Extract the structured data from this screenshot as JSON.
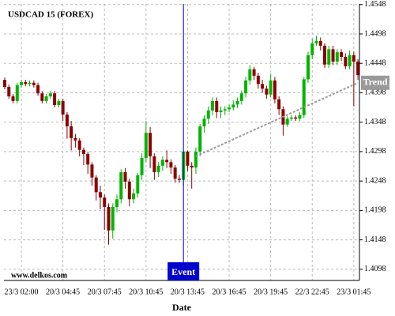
{
  "chart_data": {
    "type": "candlestick",
    "title": "USDCAD 15 (FOREX)",
    "watermark": "www.delkos.com",
    "x_label": "Date",
    "categories": [
      null,
      null,
      null,
      null,
      "23/3 02:00",
      null,
      null,
      null,
      null,
      null,
      null,
      null,
      null,
      null,
      "20/3 04:45",
      null,
      null,
      null,
      null,
      null,
      null,
      null,
      null,
      null,
      "20/3 07:45",
      null,
      null,
      null,
      null,
      null,
      null,
      null,
      null,
      null,
      "20/3 10:45",
      null,
      null,
      null,
      null,
      null,
      null,
      null,
      null,
      null,
      "20/3 13:45",
      null,
      null,
      null,
      null,
      null,
      null,
      null,
      null,
      null,
      "20/3 16:45",
      null,
      null,
      null,
      null,
      null,
      null,
      null,
      null,
      null,
      "20/3 19:45",
      null,
      null,
      null,
      null,
      null,
      null,
      null,
      null,
      null,
      "22/3 22:45",
      null,
      null,
      null,
      null,
      null,
      null,
      null,
      null,
      null,
      "23/3 01:45",
      null
    ],
    "open": [
      1.442,
      1.4408,
      1.4392,
      1.4384,
      1.4411,
      1.4416,
      1.4413,
      1.4415,
      1.4411,
      1.4397,
      1.4384,
      1.4392,
      1.4397,
      1.4377,
      1.4384,
      1.4361,
      1.4341,
      1.4321,
      1.4317,
      1.4301,
      1.4294,
      1.4276,
      1.4254,
      1.4229,
      1.422,
      1.4204,
      1.4164,
      1.4204,
      1.4217,
      1.4263,
      1.4247,
      1.4217,
      1.4227,
      1.4258,
      1.4287,
      1.433,
      1.429,
      1.4263,
      1.4274,
      1.4284,
      1.428,
      1.4271,
      1.4252,
      1.425,
      1.4298,
      1.4274,
      1.4271,
      1.4298,
      1.4341,
      1.4354,
      1.4368,
      1.4384,
      1.4365,
      1.4368,
      1.437,
      1.4373,
      1.4378,
      1.4384,
      1.4397,
      1.4419,
      1.4438,
      1.4427,
      1.4413,
      1.4405,
      1.4395,
      1.4419,
      1.4387,
      1.437,
      1.4344,
      1.4354,
      1.4356,
      1.4354,
      1.436,
      1.4421,
      1.4462,
      1.4482,
      1.4486,
      1.4478,
      1.4446,
      1.4472,
      1.4451,
      1.4467,
      1.4459,
      1.4443,
      1.4462,
      1.4451
    ],
    "high": [
      1.4424,
      1.4412,
      1.4396,
      1.4415,
      1.442,
      1.442,
      1.4419,
      1.4419,
      1.4415,
      1.4401,
      1.4396,
      1.4401,
      1.4401,
      1.4388,
      1.4388,
      1.4365,
      1.435,
      1.4328,
      1.4321,
      1.4305,
      1.4298,
      1.428,
      1.4258,
      1.424,
      1.4225,
      1.421,
      1.421,
      1.4225,
      1.4268,
      1.427,
      1.4252,
      1.4235,
      1.4262,
      1.4295,
      1.435,
      1.434,
      1.4295,
      1.428,
      1.429,
      1.43,
      1.4285,
      1.4275,
      1.4258,
      1.43,
      1.43,
      1.428,
      1.4305,
      1.4345,
      1.436,
      1.4375,
      1.439,
      1.439,
      1.4375,
      1.4375,
      1.4378,
      1.4385,
      1.439,
      1.4402,
      1.4425,
      1.4445,
      1.4442,
      1.4432,
      1.442,
      1.441,
      1.443,
      1.4425,
      1.4392,
      1.4375,
      1.4358,
      1.436,
      1.436,
      1.4365,
      1.4425,
      1.4468,
      1.449,
      1.4495,
      1.4492,
      1.4482,
      1.4478,
      1.4478,
      1.4472,
      1.4472,
      1.4465,
      1.447,
      1.4468,
      1.4455
    ],
    "low": [
      1.4404,
      1.4388,
      1.438,
      1.438,
      1.4407,
      1.4409,
      1.4409,
      1.4407,
      1.4393,
      1.438,
      1.438,
      1.4388,
      1.4373,
      1.4373,
      1.435,
      1.432,
      1.43,
      1.4305,
      1.429,
      1.4275,
      1.426,
      1.424,
      1.4215,
      1.42,
      1.4165,
      1.414,
      1.415,
      1.4195,
      1.421,
      1.4235,
      1.4205,
      1.421,
      1.422,
      1.425,
      1.428,
      1.427,
      1.425,
      1.4255,
      1.4265,
      1.427,
      1.426,
      1.4245,
      1.4245,
      1.424,
      1.4265,
      1.4235,
      1.426,
      1.429,
      1.433,
      1.4345,
      1.436,
      1.4355,
      1.4355,
      1.436,
      1.4365,
      1.4368,
      1.4372,
      1.4378,
      1.439,
      1.4412,
      1.442,
      1.4405,
      1.4398,
      1.4388,
      1.439,
      1.438,
      1.436,
      1.4325,
      1.434,
      1.435,
      1.435,
      1.435,
      1.4355,
      1.4415,
      1.4455,
      1.4478,
      1.447,
      1.444,
      1.444,
      1.4445,
      1.4445,
      1.4452,
      1.4438,
      1.4438,
      1.4375,
      1.442
    ],
    "close": [
      1.4408,
      1.4392,
      1.4384,
      1.4411,
      1.4416,
      1.4413,
      1.4415,
      1.4411,
      1.4397,
      1.4384,
      1.4392,
      1.4397,
      1.4377,
      1.4384,
      1.4361,
      1.4341,
      1.4321,
      1.4317,
      1.4301,
      1.4294,
      1.4276,
      1.4254,
      1.4229,
      1.422,
      1.4204,
      1.4164,
      1.4204,
      1.4217,
      1.4263,
      1.4247,
      1.4217,
      1.4227,
      1.4258,
      1.4287,
      1.433,
      1.429,
      1.4263,
      1.4274,
      1.4284,
      1.428,
      1.4271,
      1.4252,
      1.425,
      1.4298,
      1.4274,
      1.4271,
      1.4298,
      1.4341,
      1.4354,
      1.4368,
      1.4384,
      1.4365,
      1.4368,
      1.437,
      1.4373,
      1.4378,
      1.4384,
      1.4397,
      1.4419,
      1.4438,
      1.4427,
      1.4413,
      1.4405,
      1.4395,
      1.4419,
      1.4387,
      1.437,
      1.4344,
      1.4354,
      1.4356,
      1.4354,
      1.436,
      1.4421,
      1.4462,
      1.4482,
      1.4486,
      1.4478,
      1.4446,
      1.4472,
      1.4451,
      1.4467,
      1.4459,
      1.4443,
      1.4462,
      1.4451,
      1.4428
    ],
    "up_color": "#00b400",
    "down_color": "#8b0000",
    "ylim": [
      1.4079,
      1.4549
    ],
    "yticks": [
      1.4098,
      1.4148,
      1.4198,
      1.4248,
      1.4298,
      1.4348,
      1.4398,
      1.4448,
      1.4498,
      1.4548
    ],
    "grid": true,
    "event": {
      "label": "Event",
      "index": 43,
      "color": "#0000cc"
    },
    "trend": {
      "label": "Trend",
      "index": [
        46,
        85
      ],
      "values": [
        1.429,
        1.4415
      ],
      "color": "#999999"
    }
  }
}
